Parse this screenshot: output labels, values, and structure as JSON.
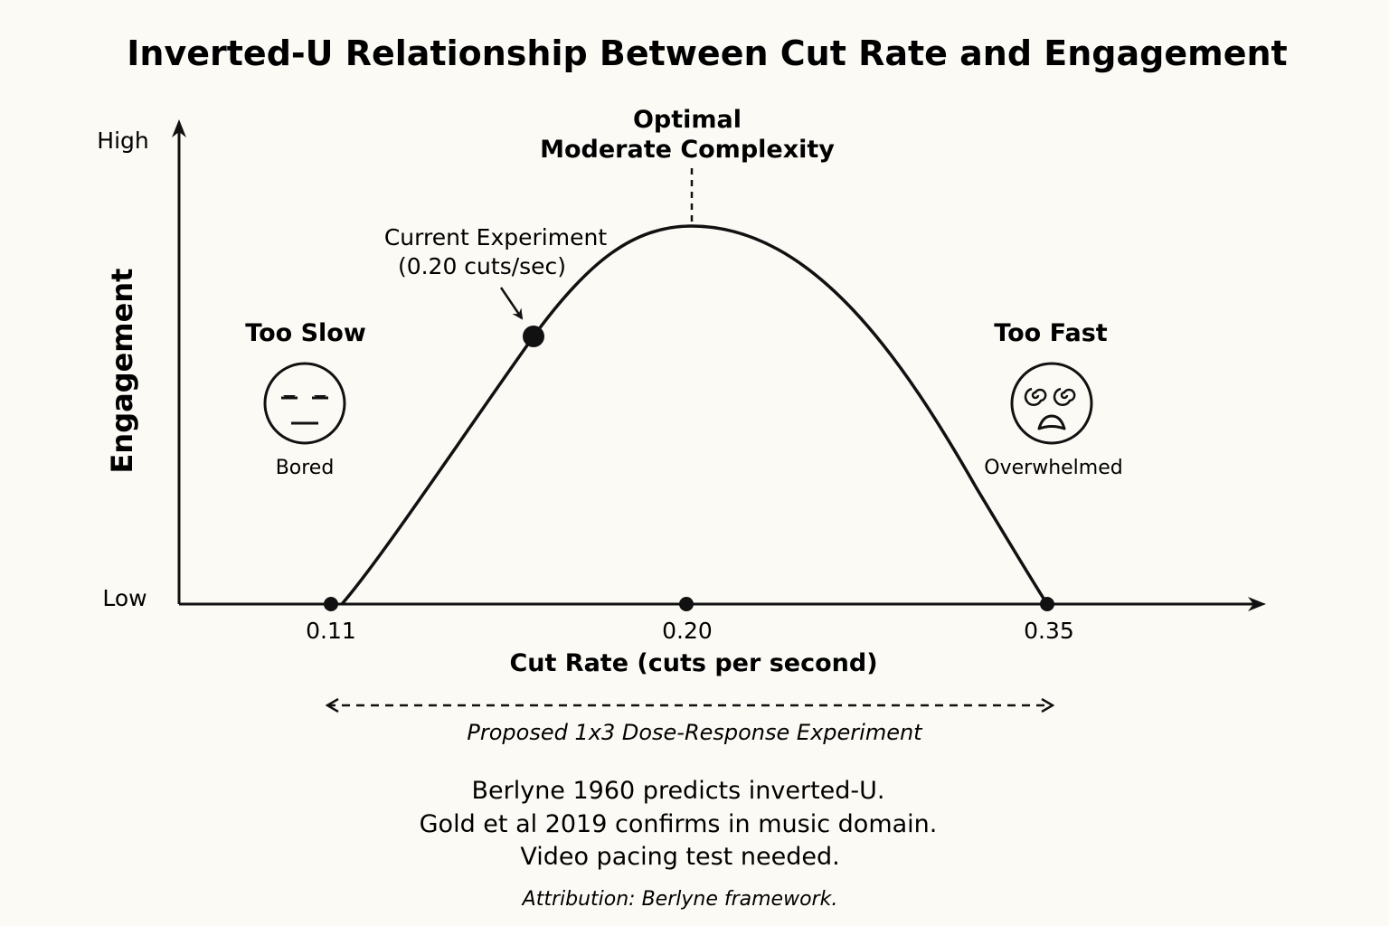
{
  "title": "Inverted-U Relationship Between Cut Rate and Engagement",
  "axes": {
    "y_title": "Engagement",
    "y_high": "High",
    "y_low": "Low",
    "x_title": "Cut Rate (cuts per second)",
    "x_ticks": [
      "0.11",
      "0.20",
      "0.35"
    ]
  },
  "peak_label": {
    "line1": "Optimal",
    "line2": "Moderate Complexity"
  },
  "current_experiment": {
    "line1": "Current Experiment",
    "line2": "(0.20 cuts/sec)"
  },
  "left_zone": {
    "heading": "Too Slow",
    "caption": "Bored",
    "icon": "bored-face-icon"
  },
  "right_zone": {
    "heading": "Too Fast",
    "caption": "Overwhelmed",
    "icon": "dizzy-face-icon"
  },
  "experiment_range": {
    "label": "Proposed 1x3 Dose-Response Experiment"
  },
  "notes": [
    "Berlyne 1960 predicts inverted-U.",
    "Gold et al 2019 confirms in music domain.",
    "Video pacing test needed."
  ],
  "attribution": "Attribution: Berlyne framework.",
  "colors": {
    "background": "#fbfaf5",
    "ink": "#111111"
  }
}
